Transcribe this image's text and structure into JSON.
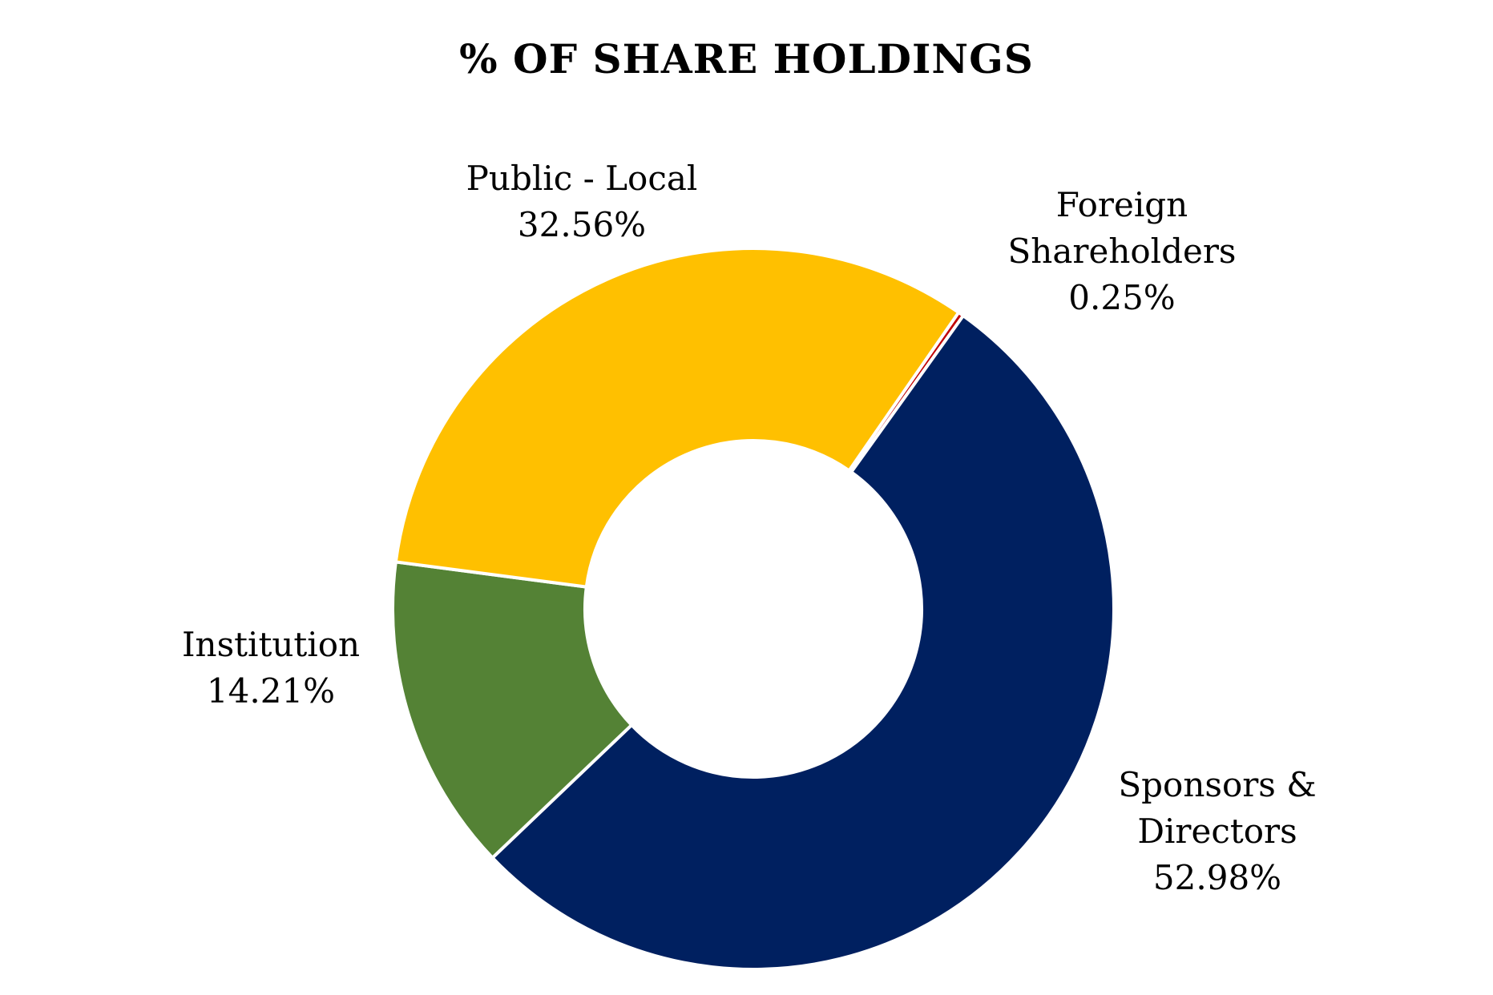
{
  "chart_data": {
    "type": "donut",
    "title": "% OF SHARE HOLDINGS",
    "categories": [
      "Foreign Shareholders",
      "Sponsors & Directors",
      "Institution",
      "Public - Local"
    ],
    "values": [
      0.25,
      52.98,
      14.21,
      32.56
    ],
    "value_labels": [
      "0.25%",
      "52.98%",
      "14.21%",
      "32.56%"
    ],
    "colors": [
      "#c00000",
      "#002060",
      "#548235",
      "#ffc000"
    ]
  }
}
